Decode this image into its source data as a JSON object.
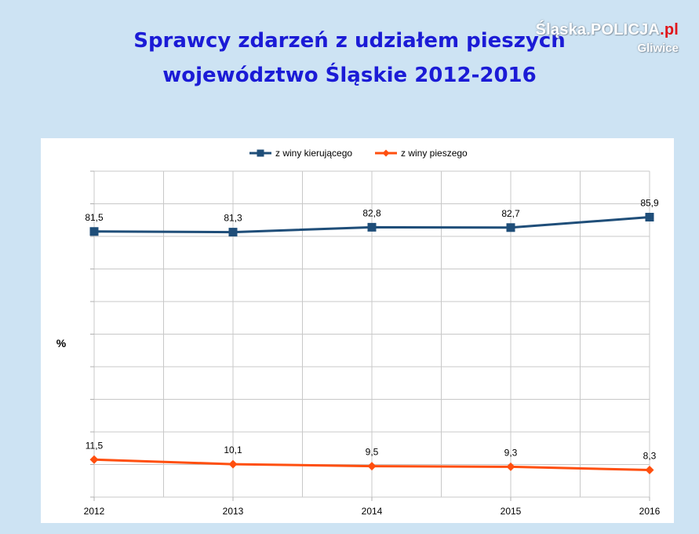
{
  "header": {
    "title_line1": "Sprawcy zdarzeń z udziałem pieszych",
    "title_line2": "województwo Śląskie 2012-2016"
  },
  "logo": {
    "main": "Śląska.POLICJA",
    "suffix": ".pl",
    "sub": "Gliwice"
  },
  "colors": {
    "background": "#cde3f3",
    "title": "#1b1bd6",
    "series_driver": "#1f4e79",
    "series_pedestrian": "#ff4f0f"
  },
  "chart_data": {
    "type": "line",
    "x": [
      "2012",
      "2013",
      "2014",
      "2015",
      "2016"
    ],
    "ylabel": "%",
    "ylim": [
      0,
      100
    ],
    "grid": true,
    "legend_position": "top-center",
    "series": [
      {
        "name": "z winy kierującego",
        "values": [
          81.5,
          81.3,
          82.8,
          82.7,
          85.9
        ],
        "labels": [
          "81,5",
          "81,3",
          "82,8",
          "82,7",
          "85,9"
        ],
        "color": "#1f4e79",
        "marker": "square"
      },
      {
        "name": "z winy pieszego",
        "values": [
          11.5,
          10.1,
          9.5,
          9.3,
          8.3
        ],
        "labels": [
          "11,5",
          "10,1",
          "9,5",
          "9,3",
          "8,3"
        ],
        "color": "#ff4f0f",
        "marker": "diamond"
      }
    ]
  }
}
